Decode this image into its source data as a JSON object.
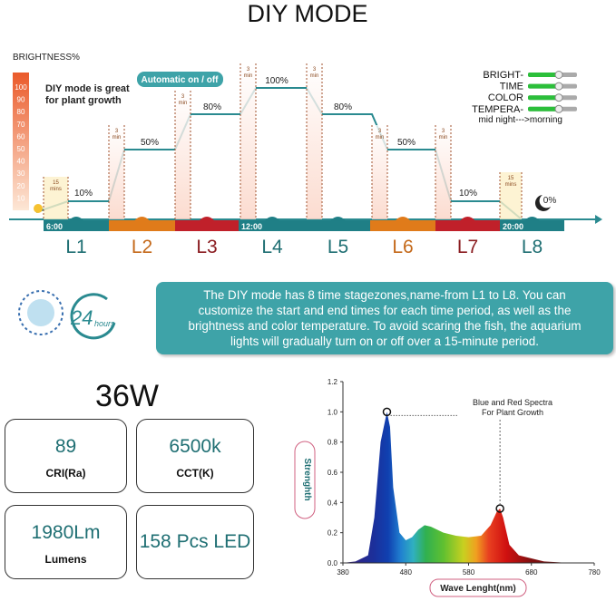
{
  "title": "DIY MODE",
  "schedule": {
    "axis_label": "BRIGHTNESS%",
    "yticks": [
      100,
      90,
      80,
      70,
      60,
      50,
      40,
      30,
      20,
      10
    ],
    "note": [
      "DIY mode is great",
      "for plant growth"
    ],
    "badge": "Automatic on / off",
    "legend": [
      "BRIGHT-",
      "TIME",
      "COLOR",
      "TEMPERA-"
    ],
    "levels": [
      "10%",
      "50%",
      "80%",
      "100%",
      "80%",
      "50%",
      "10%",
      "0%"
    ],
    "ramps": [
      [
        "15",
        "mins"
      ],
      [
        "3",
        "min"
      ],
      [
        "3",
        "min"
      ],
      [
        "3",
        "min"
      ],
      [
        "3",
        "min"
      ],
      [
        "3",
        "min"
      ],
      [
        "3",
        "min"
      ],
      [
        "15",
        "mins"
      ]
    ],
    "times": [
      "6:00",
      "12:00",
      "20:00"
    ],
    "stages": [
      "L1",
      "L2",
      "L3",
      "L4",
      "L5",
      "L6",
      "L7",
      "L8"
    ],
    "night": "mid night--->morning"
  },
  "clock": {
    "number": "24",
    "unit": "hours"
  },
  "description": [
    "The DIY mode has 8 time stagezones,name-from L1 to L8. You can",
    "customize the start and end times for each time period, as well as the",
    "brightness and color temperature. To avoid scaring the fish, the aquarium",
    "lights will gradually turn on or off over a 15-minute period."
  ],
  "power": "36W",
  "specs": [
    {
      "value": "89",
      "label": "CRI(Ra)"
    },
    {
      "value": "6500k",
      "label": "CCT(K)"
    },
    {
      "value": "1980Lm",
      "label": "Lumens"
    },
    {
      "value": "158 Pcs LED"
    }
  ],
  "chart_data": {
    "type": "area",
    "xlabel": "Wave Lenght(nm)",
    "ylabel": "Strenghth",
    "annotation": [
      "Blue and Red Spectra",
      "For Plant Growth"
    ],
    "x": [
      380,
      400,
      420,
      430,
      440,
      450,
      455,
      460,
      470,
      480,
      490,
      500,
      510,
      520,
      540,
      560,
      580,
      600,
      615,
      625,
      630,
      635,
      645,
      660,
      680,
      700,
      740,
      780
    ],
    "values": [
      0,
      0.01,
      0.05,
      0.3,
      0.8,
      1.0,
      0.9,
      0.5,
      0.2,
      0.15,
      0.17,
      0.22,
      0.25,
      0.24,
      0.2,
      0.18,
      0.17,
      0.18,
      0.25,
      0.34,
      0.36,
      0.3,
      0.12,
      0.05,
      0.03,
      0.01,
      0,
      0
    ],
    "xlim": [
      380,
      780
    ],
    "xticks": [
      380,
      480,
      580,
      680,
      780
    ],
    "ylim": [
      0,
      1.2
    ],
    "yticks": [
      {
        "value": 0,
        "label": "0.0"
      },
      {
        "value": 0.2,
        "label": "0.2"
      },
      {
        "value": 0.4,
        "label": "0.4"
      },
      {
        "value": 0.6,
        "label": "0.6"
      },
      {
        "value": 0.8,
        "label": "0.8"
      },
      {
        "value": 1.0,
        "label": "1.0"
      },
      {
        "value": 1.2,
        "label": "1.2"
      }
    ]
  }
}
